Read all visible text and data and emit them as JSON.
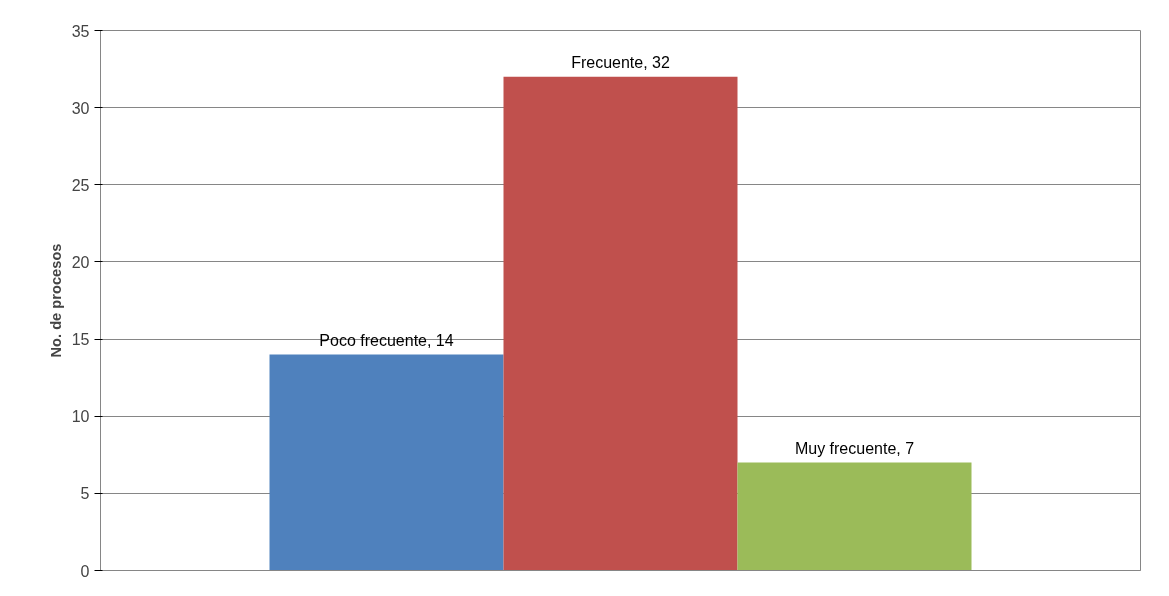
{
  "chart_data": {
    "type": "bar",
    "ylabel": "No. de procesos",
    "categories": [
      null
    ],
    "series": [
      {
        "color": "#4f81bd",
        "values": [
          14
        ],
        "value_labels": [
          "Poco frecuente, 14"
        ]
      },
      {
        "color": "#c0504d",
        "values": [
          32
        ],
        "value_labels": [
          "Frecuente, 32"
        ]
      },
      {
        "color": "#9bbb59",
        "values": [
          7
        ],
        "value_labels": [
          "Muy frecuente, 7"
        ]
      }
    ],
    "ylim": [
      0,
      35
    ],
    "yticks": [
      0,
      5,
      10,
      15,
      20,
      25,
      30,
      35
    ],
    "grid": "y",
    "tick_labels": "y"
  }
}
